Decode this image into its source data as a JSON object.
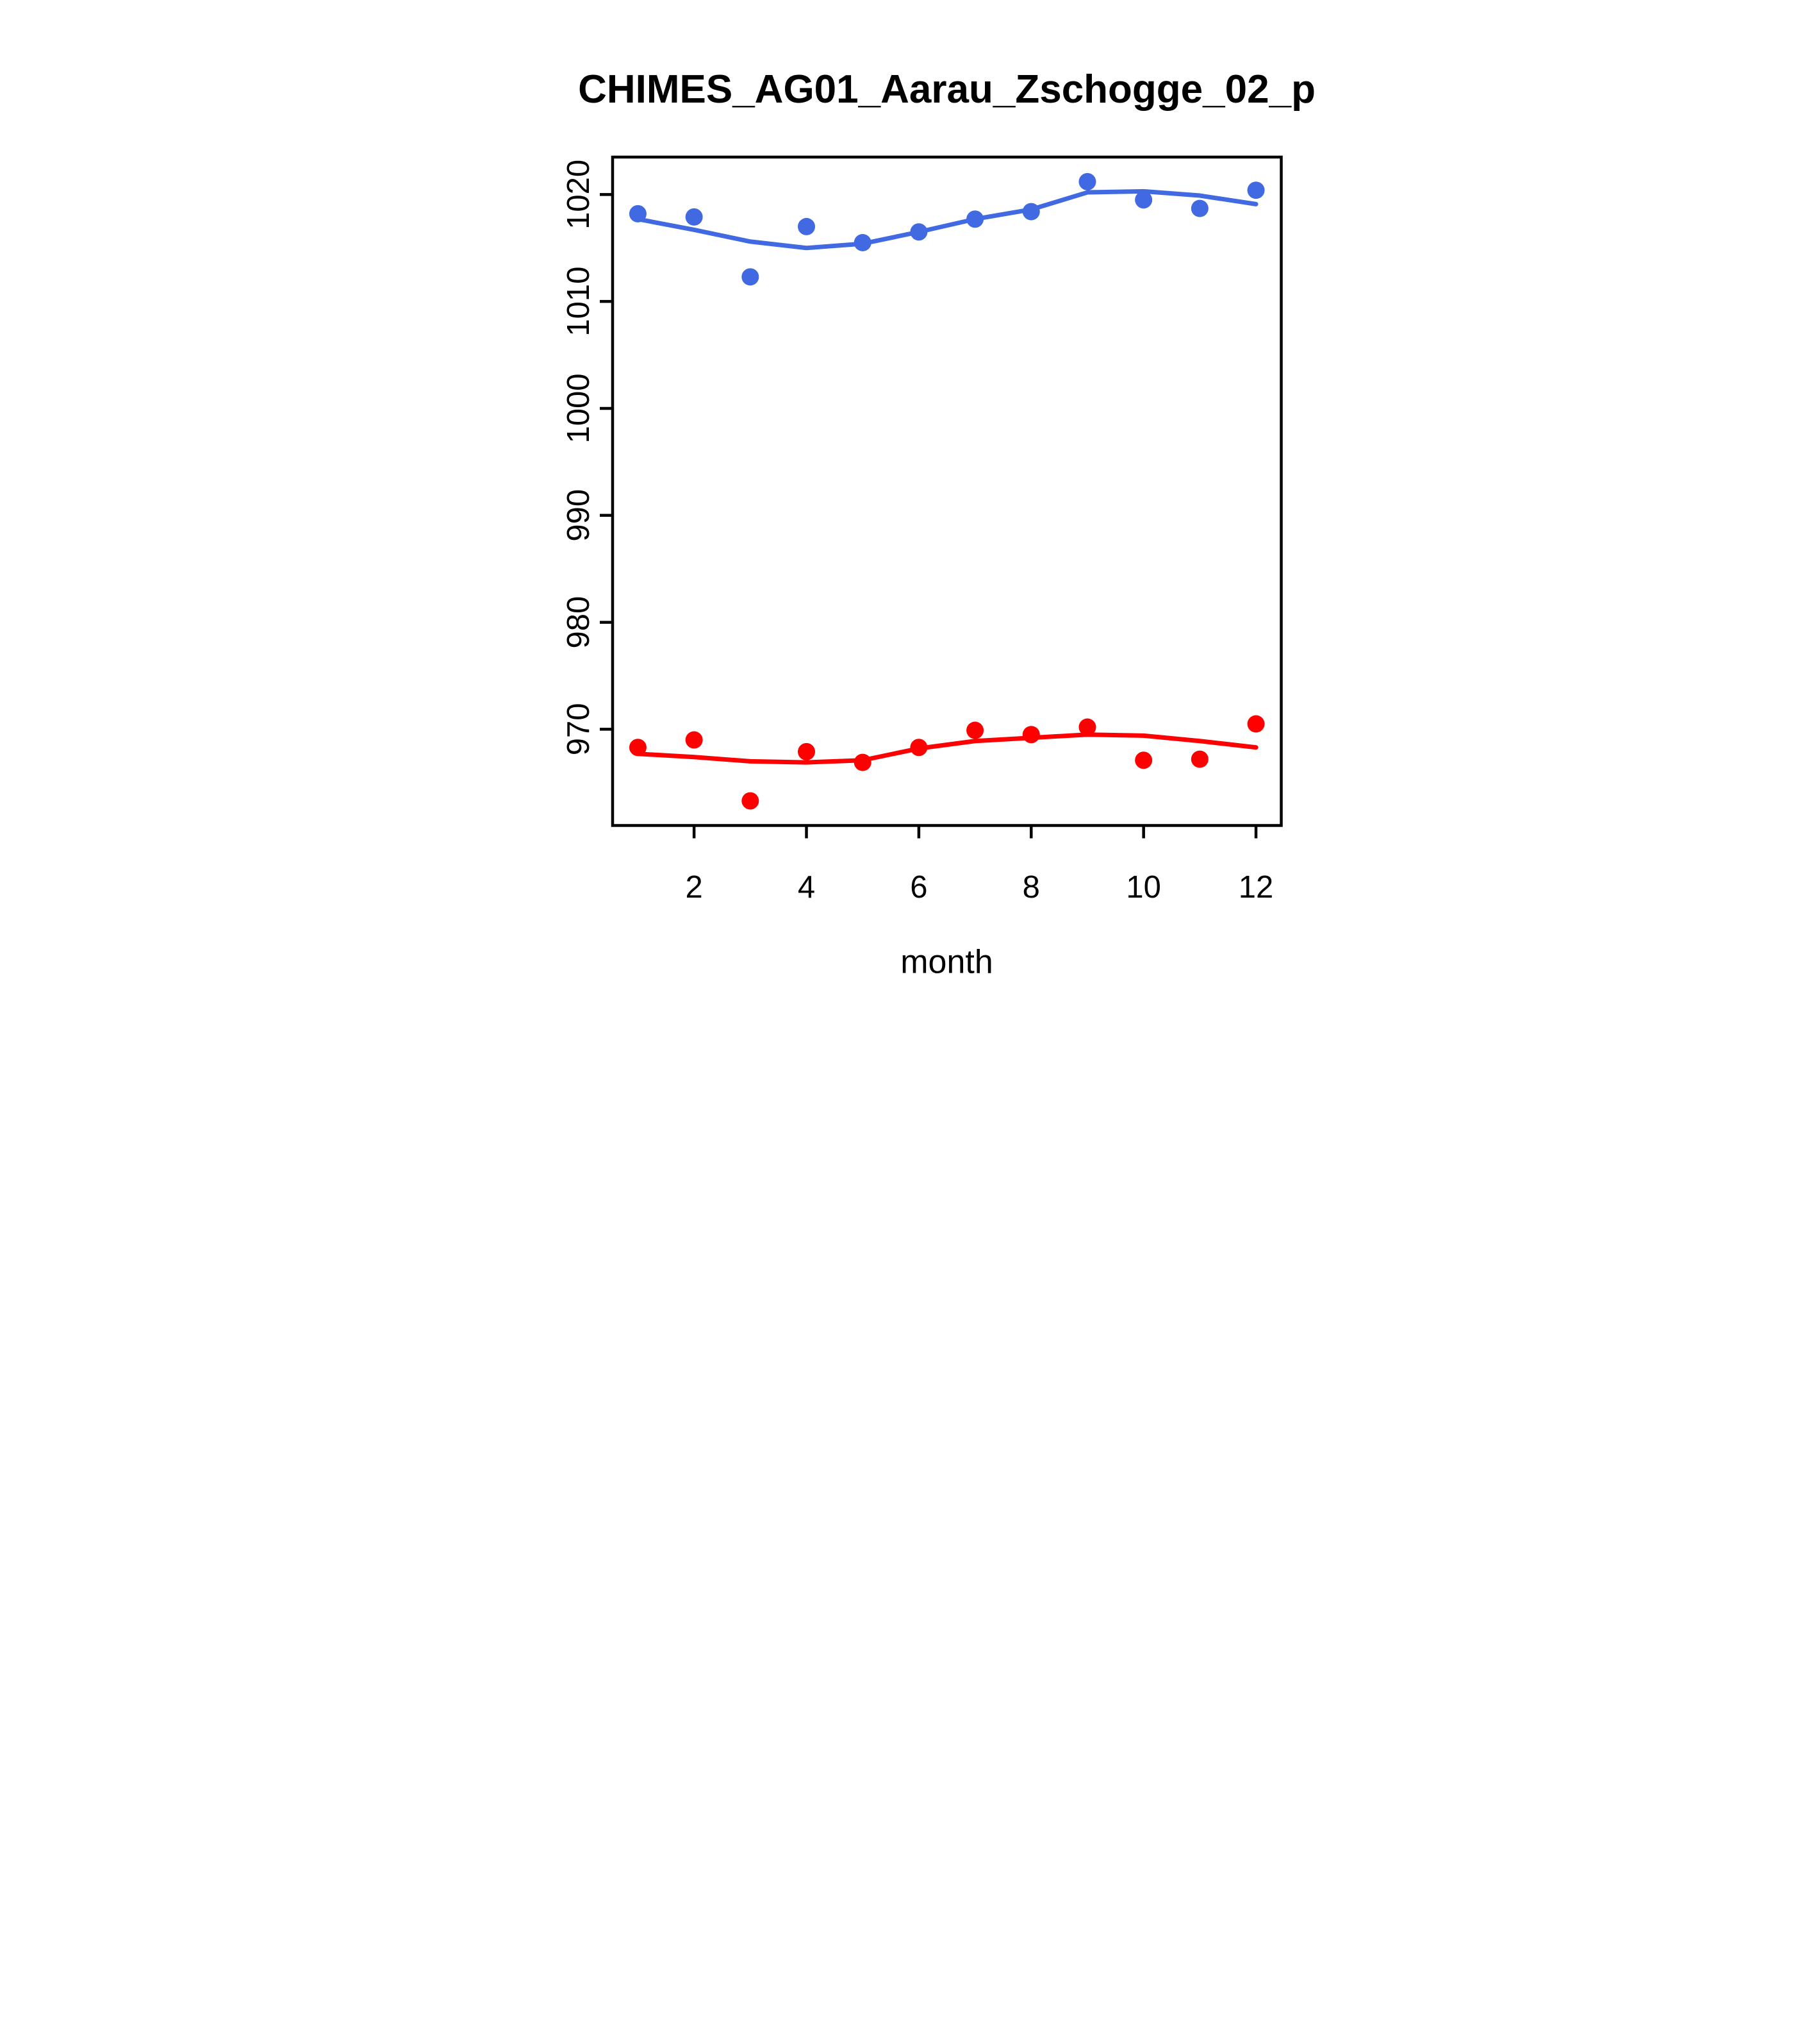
{
  "background_color": "#ffffff",
  "chart_data": {
    "type": "scatter",
    "title": "CHIMES_AG01_Aarau_Zschogge_02_p",
    "xlabel": "month",
    "ylabel": "",
    "x": [
      1,
      2,
      3,
      4,
      5,
      6,
      7,
      8,
      9,
      10,
      11,
      12
    ],
    "x_ticks": [
      2,
      4,
      6,
      8,
      10,
      12
    ],
    "y_ticks": [
      970,
      980,
      990,
      1000,
      1010,
      1020
    ],
    "xlim": [
      0.55,
      12.45
    ],
    "ylim": [
      961.0,
      1023.5
    ],
    "grid": false,
    "legend": "none",
    "axis_color": "#000000",
    "series": [
      {
        "name": "upper-series-blue",
        "color": "#4169E1",
        "marker": "filled-circle",
        "points": [
          1018.2,
          1017.9,
          1012.3,
          1017.0,
          1015.5,
          1016.5,
          1017.7,
          1018.4,
          1021.2,
          1019.5,
          1018.7,
          1020.4
        ],
        "smooth_line": [
          1017.7,
          1016.7,
          1015.6,
          1015.0,
          1015.4,
          1016.5,
          1017.7,
          1018.6,
          1020.2,
          1020.3,
          1019.9,
          1019.1
        ]
      },
      {
        "name": "lower-series-red",
        "color": "#FF0000",
        "marker": "filled-circle",
        "points": [
          968.3,
          969.0,
          963.3,
          967.9,
          966.9,
          968.3,
          969.9,
          969.5,
          970.2,
          967.1,
          967.2,
          970.5
        ],
        "smooth_line": [
          967.7,
          967.4,
          967.0,
          966.9,
          967.1,
          968.2,
          968.9,
          969.2,
          969.5,
          969.4,
          968.9,
          968.3
        ]
      }
    ]
  }
}
